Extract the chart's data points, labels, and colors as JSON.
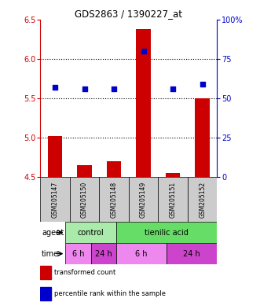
{
  "title": "GDS2863 / 1390227_at",
  "samples": [
    "GSM205147",
    "GSM205150",
    "GSM205148",
    "GSM205149",
    "GSM205151",
    "GSM205152"
  ],
  "bar_values": [
    5.02,
    4.65,
    4.7,
    6.38,
    4.55,
    5.5
  ],
  "bar_baseline": 4.5,
  "bar_color": "#cc0000",
  "blue_values_pct": [
    57,
    56,
    56,
    80,
    56,
    59
  ],
  "blue_color": "#0000cc",
  "ylim_left": [
    4.5,
    6.5
  ],
  "ylim_right": [
    0,
    100
  ],
  "yticks_left": [
    4.5,
    5.0,
    5.5,
    6.0,
    6.5
  ],
  "yticks_right": [
    0,
    25,
    50,
    75,
    100
  ],
  "hlines": [
    5.0,
    5.5,
    6.0
  ],
  "agent_labels": [
    {
      "label": "control",
      "start": 0,
      "end": 2,
      "color": "#aaeaaa"
    },
    {
      "label": "tienilic acid",
      "start": 2,
      "end": 6,
      "color": "#66dd66"
    }
  ],
  "time_labels": [
    {
      "label": "6 h",
      "start": 0,
      "end": 1,
      "color": "#ee88ee"
    },
    {
      "label": "24 h",
      "start": 1,
      "end": 2,
      "color": "#cc44cc"
    },
    {
      "label": "6 h",
      "start": 2,
      "end": 4,
      "color": "#ee88ee"
    },
    {
      "label": "24 h",
      "start": 4,
      "end": 6,
      "color": "#cc44cc"
    }
  ],
  "legend_bar_label": "transformed count",
  "legend_dot_label": "percentile rank within the sample",
  "agent_arrow_label": "agent",
  "time_arrow_label": "time",
  "bar_left_color": "#cc0000",
  "bar_right_color": "#0000cc",
  "sample_box_color": "#cccccc",
  "bar_width": 0.5
}
